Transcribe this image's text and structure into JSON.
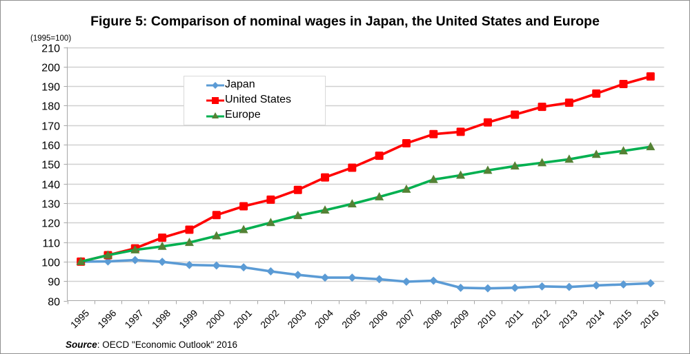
{
  "chart_data": {
    "type": "line",
    "title": "Figure 5: Comparison of nominal wages in Japan, the United States and Europe",
    "ylabel": "(1995=100)",
    "xlabel": "",
    "ylim": [
      80,
      210
    ],
    "yticks": [
      80,
      90,
      100,
      110,
      120,
      130,
      140,
      150,
      160,
      170,
      180,
      190,
      200,
      210
    ],
    "grid": true,
    "legend_position": "top-left",
    "categories": [
      "1995",
      "1996",
      "1997",
      "1998",
      "1999",
      "2000",
      "2001",
      "2002",
      "2003",
      "2004",
      "2005",
      "2006",
      "2007",
      "2008",
      "2009",
      "2010",
      "2011",
      "2012",
      "2013",
      "2014",
      "2015",
      "2016"
    ],
    "series": [
      {
        "name": "Japan",
        "color": "#5B9BD5",
        "marker": "diamond",
        "values": [
          100,
          100.1,
          100.8,
          99.9,
          98.3,
          98.0,
          97.1,
          95.0,
          93.2,
          91.8,
          91.8,
          91.0,
          89.7,
          90.2,
          86.6,
          86.3,
          86.6,
          87.3,
          87.0,
          87.8,
          88.3,
          88.9
        ]
      },
      {
        "name": "United States",
        "color": "#FF0000",
        "marker": "square",
        "values": [
          100,
          103.3,
          106.8,
          112.3,
          116.4,
          123.9,
          128.4,
          131.8,
          136.8,
          143.2,
          148.2,
          154.3,
          160.7,
          165.4,
          166.6,
          171.4,
          175.4,
          179.4,
          181.5,
          186.2,
          191.1,
          195.0
        ]
      },
      {
        "name": "Europe",
        "color": "#00B050",
        "marker_color": "#548235",
        "marker": "triangle",
        "values": [
          100,
          103.3,
          106.0,
          107.8,
          109.8,
          113.2,
          116.4,
          120.0,
          123.6,
          126.4,
          129.6,
          133.2,
          137.1,
          142.1,
          144.3,
          146.8,
          149.0,
          150.7,
          152.5,
          155.0,
          156.8,
          158.9
        ]
      }
    ],
    "source_label": "Source",
    "source_text": ": OECD \"Economic Outlook\" 2016"
  }
}
